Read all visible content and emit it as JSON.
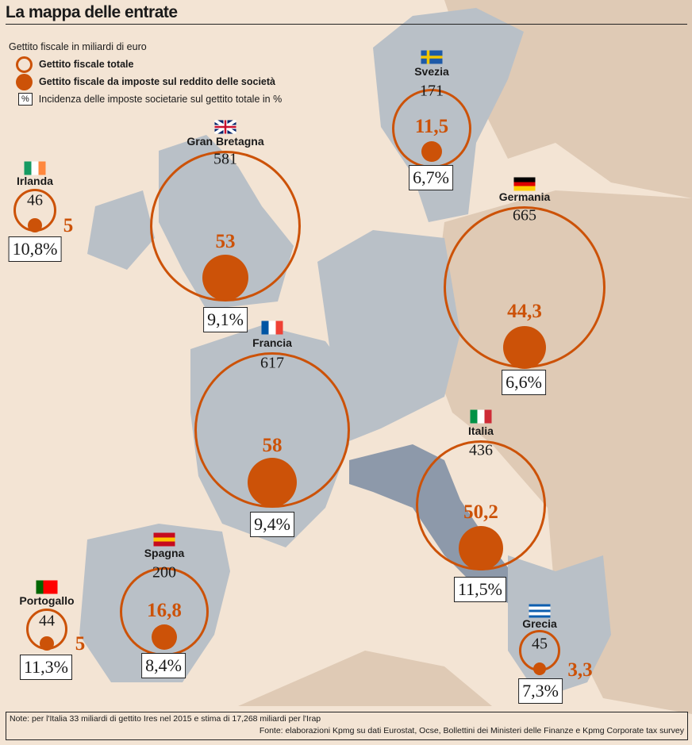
{
  "title": "La mappa delle entrate",
  "legend": {
    "heading": "Gettito fiscale in miliardi di euro",
    "total": "Gettito fiscale totale",
    "corporate": "Gettito fiscale da imposte sul reddito delle società",
    "pct_symbol": "%",
    "pct": "Incidenza delle imposte societarie sul gettito totale in %"
  },
  "colors": {
    "accent": "#cc5208",
    "background": "#f3e4d4",
    "land": "#dfcab5",
    "land_gray": "#b9c0c7",
    "italy": "#8d99aa"
  },
  "chart_data": {
    "type": "bubble-map",
    "title": "La mappa delle entrate",
    "unit": "miliardi di euro",
    "countries": [
      {
        "name": "Svezia",
        "total": "171",
        "corporate": "11,5",
        "pct": "6,7%",
        "total_value": 171,
        "corporate_value": 11.5,
        "flag": "sweden-flag"
      },
      {
        "name": "Gran Bretagna",
        "total": "581",
        "corporate": "53",
        "pct": "9,1%",
        "total_value": 581,
        "corporate_value": 53,
        "flag": "uk-flag"
      },
      {
        "name": "Irlanda",
        "total": "46",
        "corporate": "5",
        "pct": "10,8%",
        "total_value": 46,
        "corporate_value": 5,
        "flag": "ireland-flag"
      },
      {
        "name": "Germania",
        "total": "665",
        "corporate": "44,3",
        "pct": "6,6%",
        "total_value": 665,
        "corporate_value": 44.3,
        "flag": "germany-flag"
      },
      {
        "name": "Francia",
        "total": "617",
        "corporate": "58",
        "pct": "9,4%",
        "total_value": 617,
        "corporate_value": 58,
        "flag": "france-flag"
      },
      {
        "name": "Italia",
        "total": "436",
        "corporate": "50,2",
        "pct": "11,5%",
        "total_value": 436,
        "corporate_value": 50.2,
        "flag": "italy-flag"
      },
      {
        "name": "Spagna",
        "total": "200",
        "corporate": "16,8",
        "pct": "8,4%",
        "total_value": 200,
        "corporate_value": 16.8,
        "flag": "spain-flag"
      },
      {
        "name": "Portogallo",
        "total": "44",
        "corporate": "5",
        "pct": "11,3%",
        "total_value": 44,
        "corporate_value": 5,
        "flag": "portugal-flag"
      },
      {
        "name": "Grecia",
        "total": "45",
        "corporate": "3,3",
        "pct": "7,3%",
        "total_value": 45,
        "corporate_value": 3.3,
        "flag": "greece-flag"
      }
    ]
  },
  "footer": {
    "note": "Note: per l'Italia 33 miliardi di gettito Ires nel 2015 e stima di 17,268 miliardi per l'Irap",
    "source": "Fonte: elaborazioni Kpmg su dati Eurostat, Ocse, Bollettini dei Ministeri delle Finanze e Kpmg Corporate tax survey"
  }
}
